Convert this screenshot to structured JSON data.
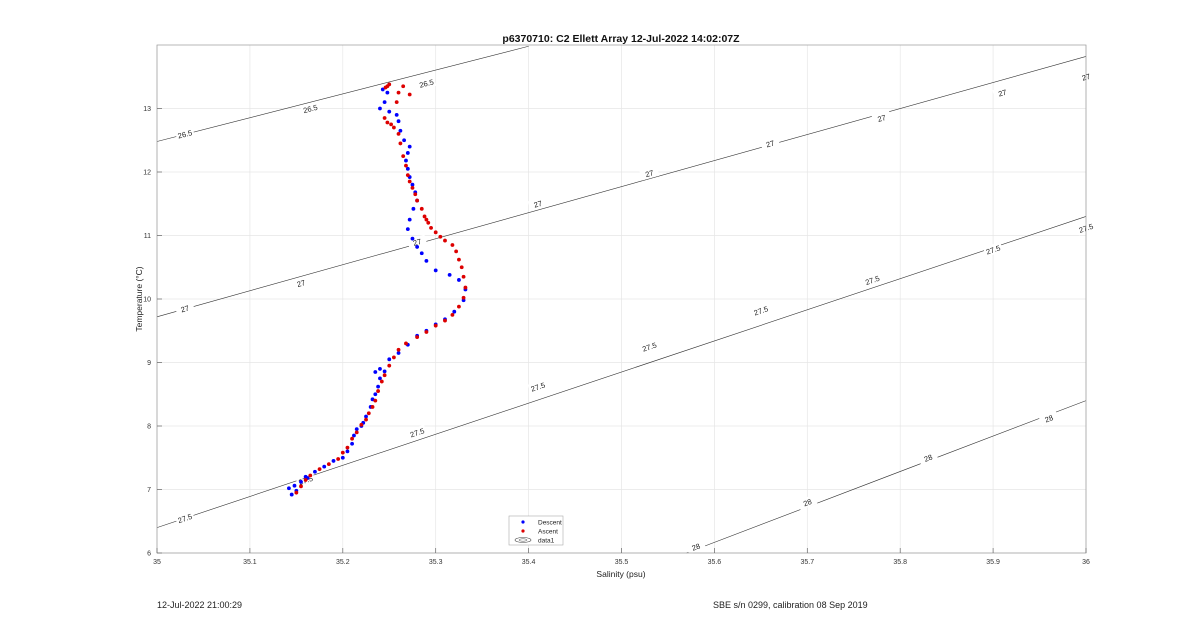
{
  "chart_data": {
    "type": "scatter",
    "title": "p6370710: C2 Ellett Array 12-Jul-2022 14:02:07Z",
    "xlabel": "Salinity (psu)",
    "ylabel": "Temperature (°C)",
    "xlim": [
      35,
      36
    ],
    "ylim": [
      6,
      14
    ],
    "xticks": [
      "35",
      "35.1",
      "35.2",
      "35.3",
      "35.4",
      "35.5",
      "35.6",
      "35.7",
      "35.8",
      "35.9",
      "36"
    ],
    "yticks": [
      "6",
      "7",
      "8",
      "9",
      "10",
      "11",
      "12",
      "13"
    ],
    "grid": true,
    "legend": {
      "position": "bottom-center",
      "entries": [
        "Descent",
        "Ascent",
        "data1"
      ]
    },
    "series": [
      {
        "name": "Descent",
        "color": "#0000ff",
        "points": [
          [
            35.145,
            6.92
          ],
          [
            35.142,
            7.02
          ],
          [
            35.148,
            7.06
          ],
          [
            35.15,
            6.98
          ],
          [
            35.155,
            7.12
          ],
          [
            35.16,
            7.2
          ],
          [
            35.162,
            7.18
          ],
          [
            35.17,
            7.28
          ],
          [
            35.18,
            7.36
          ],
          [
            35.19,
            7.45
          ],
          [
            35.2,
            7.5
          ],
          [
            35.205,
            7.6
          ],
          [
            35.21,
            7.72
          ],
          [
            35.212,
            7.85
          ],
          [
            35.215,
            7.95
          ],
          [
            35.22,
            8.0
          ],
          [
            35.222,
            8.05
          ],
          [
            35.225,
            8.15
          ],
          [
            35.23,
            8.3
          ],
          [
            35.232,
            8.42
          ],
          [
            35.235,
            8.5
          ],
          [
            35.238,
            8.62
          ],
          [
            35.24,
            8.75
          ],
          [
            35.235,
            8.85
          ],
          [
            35.24,
            8.9
          ],
          [
            35.245,
            8.86
          ],
          [
            35.25,
            9.05
          ],
          [
            35.26,
            9.15
          ],
          [
            35.27,
            9.28
          ],
          [
            35.28,
            9.42
          ],
          [
            35.29,
            9.5
          ],
          [
            35.3,
            9.6
          ],
          [
            35.31,
            9.68
          ],
          [
            35.32,
            9.8
          ],
          [
            35.33,
            9.98
          ],
          [
            35.332,
            10.15
          ],
          [
            35.325,
            10.3
          ],
          [
            35.315,
            10.38
          ],
          [
            35.3,
            10.45
          ],
          [
            35.29,
            10.6
          ],
          [
            35.285,
            10.72
          ],
          [
            35.28,
            10.82
          ],
          [
            35.275,
            10.95
          ],
          [
            35.27,
            11.1
          ],
          [
            35.272,
            11.25
          ],
          [
            35.276,
            11.42
          ],
          [
            35.28,
            11.55
          ],
          [
            35.278,
            11.68
          ],
          [
            35.275,
            11.8
          ],
          [
            35.272,
            11.92
          ],
          [
            35.27,
            12.05
          ],
          [
            35.268,
            12.18
          ],
          [
            35.27,
            12.3
          ],
          [
            35.272,
            12.4
          ],
          [
            35.266,
            12.5
          ],
          [
            35.262,
            12.65
          ],
          [
            35.26,
            12.8
          ],
          [
            35.258,
            12.9
          ],
          [
            35.25,
            12.95
          ],
          [
            35.245,
            13.1
          ],
          [
            35.248,
            13.25
          ],
          [
            35.243,
            13.3
          ],
          [
            35.24,
            13.0
          ]
        ]
      },
      {
        "name": "Ascent",
        "color": "#dd0000",
        "points": [
          [
            35.15,
            6.95
          ],
          [
            35.155,
            7.05
          ],
          [
            35.16,
            7.15
          ],
          [
            35.165,
            7.22
          ],
          [
            35.175,
            7.32
          ],
          [
            35.185,
            7.4
          ],
          [
            35.195,
            7.48
          ],
          [
            35.2,
            7.58
          ],
          [
            35.205,
            7.66
          ],
          [
            35.21,
            7.8
          ],
          [
            35.215,
            7.9
          ],
          [
            35.22,
            8.02
          ],
          [
            35.225,
            8.1
          ],
          [
            35.228,
            8.2
          ],
          [
            35.232,
            8.3
          ],
          [
            35.235,
            8.4
          ],
          [
            35.238,
            8.55
          ],
          [
            35.242,
            8.7
          ],
          [
            35.245,
            8.8
          ],
          [
            35.25,
            8.95
          ],
          [
            35.255,
            9.08
          ],
          [
            35.26,
            9.2
          ],
          [
            35.268,
            9.3
          ],
          [
            35.28,
            9.4
          ],
          [
            35.29,
            9.48
          ],
          [
            35.3,
            9.58
          ],
          [
            35.31,
            9.66
          ],
          [
            35.318,
            9.75
          ],
          [
            35.325,
            9.88
          ],
          [
            35.33,
            10.02
          ],
          [
            35.332,
            10.18
          ],
          [
            35.33,
            10.35
          ],
          [
            35.328,
            10.5
          ],
          [
            35.325,
            10.62
          ],
          [
            35.322,
            10.75
          ],
          [
            35.318,
            10.85
          ],
          [
            35.31,
            10.92
          ],
          [
            35.305,
            10.98
          ],
          [
            35.3,
            11.05
          ],
          [
            35.295,
            11.12
          ],
          [
            35.292,
            11.2
          ],
          [
            35.29,
            11.25
          ],
          [
            35.288,
            11.3
          ],
          [
            35.285,
            11.42
          ],
          [
            35.28,
            11.55
          ],
          [
            35.278,
            11.65
          ],
          [
            35.275,
            11.75
          ],
          [
            35.272,
            11.85
          ],
          [
            35.27,
            11.95
          ],
          [
            35.268,
            12.1
          ],
          [
            35.265,
            12.25
          ],
          [
            35.262,
            12.45
          ],
          [
            35.26,
            12.6
          ],
          [
            35.255,
            12.7
          ],
          [
            35.252,
            12.75
          ],
          [
            35.248,
            12.78
          ],
          [
            35.245,
            12.85
          ],
          [
            35.258,
            13.1
          ],
          [
            35.26,
            13.25
          ],
          [
            35.265,
            13.35
          ],
          [
            35.272,
            13.22
          ],
          [
            35.248,
            13.35
          ],
          [
            35.25,
            13.38
          ],
          [
            35.246,
            13.33
          ]
        ]
      }
    ],
    "contours": [
      {
        "label": "26.5",
        "labels_at": [
          [
            35.03,
            12.6
          ],
          [
            35.165,
            13.0
          ],
          [
            35.29,
            13.4
          ]
        ],
        "line": [
          [
            35.0,
            12.48
          ],
          [
            35.4,
            13.98
          ]
        ]
      },
      {
        "label": "27",
        "labels_at": [
          [
            35.03,
            9.85
          ],
          [
            35.155,
            10.25
          ],
          [
            35.28,
            10.9
          ],
          [
            35.41,
            11.5
          ],
          [
            35.53,
            11.98
          ],
          [
            35.66,
            12.45
          ],
          [
            35.78,
            12.85
          ],
          [
            35.91,
            13.25
          ],
          [
            36.0,
            13.5
          ]
        ],
        "line": [
          [
            35.0,
            9.72
          ],
          [
            36.0,
            13.82
          ]
        ]
      },
      {
        "label": "27.5",
        "labels_at": [
          [
            35.03,
            6.55
          ],
          [
            35.16,
            7.15
          ],
          [
            35.28,
            7.9
          ],
          [
            35.41,
            8.62
          ],
          [
            35.53,
            9.25
          ],
          [
            35.65,
            9.82
          ],
          [
            35.77,
            10.3
          ],
          [
            35.9,
            10.78
          ],
          [
            36.0,
            11.12
          ]
        ],
        "line": [
          [
            35.0,
            6.4
          ],
          [
            36.0,
            11.3
          ]
        ]
      },
      {
        "label": "28",
        "labels_at": [
          [
            35.58,
            6.1
          ],
          [
            35.7,
            6.8
          ],
          [
            35.83,
            7.5
          ],
          [
            35.96,
            8.12
          ]
        ],
        "line": [
          [
            35.57,
            6.0
          ],
          [
            36.0,
            8.4
          ]
        ]
      }
    ]
  },
  "footer": {
    "left": "12-Jul-2022 21:00:29",
    "right": "SBE s/n 0299, calibration 08 Sep 2019"
  }
}
